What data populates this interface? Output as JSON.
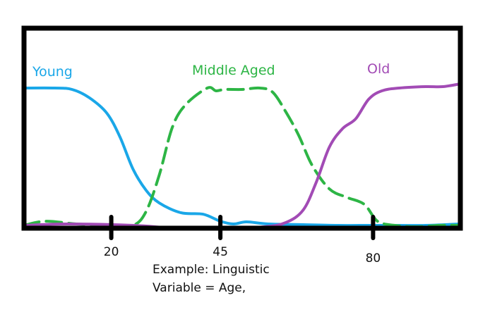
{
  "chart_data": {
    "type": "line",
    "title": "",
    "xlabel": "",
    "ylabel": "",
    "xlim": [
      0,
      100
    ],
    "ylim": [
      0,
      1
    ],
    "x_ticks": [
      20,
      45,
      80
    ],
    "x_tick_labels": [
      "20",
      "45",
      "80"
    ],
    "grid": false,
    "legend": "inline labels above curves",
    "series": [
      {
        "name": "Young",
        "color": "#1aa7e8",
        "dash": "solid",
        "points": [
          [
            0,
            1.0
          ],
          [
            7,
            1.0
          ],
          [
            11,
            0.99
          ],
          [
            15,
            0.93
          ],
          [
            19,
            0.82
          ],
          [
            22,
            0.65
          ],
          [
            25,
            0.42
          ],
          [
            28,
            0.27
          ],
          [
            31,
            0.18
          ],
          [
            36,
            0.11
          ],
          [
            41,
            0.1
          ],
          [
            45,
            0.05
          ],
          [
            48,
            0.03
          ],
          [
            51,
            0.045
          ],
          [
            56,
            0.03
          ],
          [
            64,
            0.025
          ],
          [
            72,
            0.02
          ],
          [
            80,
            0.02
          ],
          [
            86,
            0.02
          ],
          [
            92,
            0.02
          ],
          [
            100,
            0.03
          ]
        ]
      },
      {
        "name": "Middle Aged",
        "color": "#2db545",
        "dash": "dashed",
        "points": [
          [
            0,
            0.02
          ],
          [
            5,
            0.05
          ],
          [
            12,
            0.03
          ],
          [
            20,
            0.02
          ],
          [
            25,
            0.02
          ],
          [
            28,
            0.12
          ],
          [
            31,
            0.38
          ],
          [
            34,
            0.72
          ],
          [
            37,
            0.88
          ],
          [
            42,
            1.0
          ],
          [
            44,
            0.98
          ],
          [
            46,
            0.99
          ],
          [
            50,
            0.99
          ],
          [
            54,
            1.0
          ],
          [
            57,
            0.97
          ],
          [
            60,
            0.83
          ],
          [
            63,
            0.66
          ],
          [
            66,
            0.45
          ],
          [
            70,
            0.28
          ],
          [
            74,
            0.22
          ],
          [
            78,
            0.17
          ],
          [
            81,
            0.05
          ],
          [
            85,
            0.02
          ],
          [
            90,
            0.01
          ],
          [
            95,
            0.02
          ],
          [
            100,
            0.02
          ]
        ]
      },
      {
        "name": "Old",
        "color": "#a24bb5",
        "dash": "solid",
        "points": [
          [
            0,
            0.02
          ],
          [
            10,
            0.03
          ],
          [
            25,
            0.02
          ],
          [
            35,
            0.0
          ],
          [
            45,
            0.0
          ],
          [
            55,
            0.01
          ],
          [
            60,
            0.04
          ],
          [
            64,
            0.13
          ],
          [
            67,
            0.33
          ],
          [
            70,
            0.58
          ],
          [
            73,
            0.71
          ],
          [
            76,
            0.78
          ],
          [
            79,
            0.92
          ],
          [
            82,
            0.98
          ],
          [
            86,
            1.0
          ],
          [
            92,
            1.01
          ],
          [
            96,
            1.01
          ],
          [
            100,
            1.03
          ]
        ]
      }
    ]
  },
  "caption": {
    "line1": "Example: Linguistic",
    "line2": "Variable = Age,"
  }
}
